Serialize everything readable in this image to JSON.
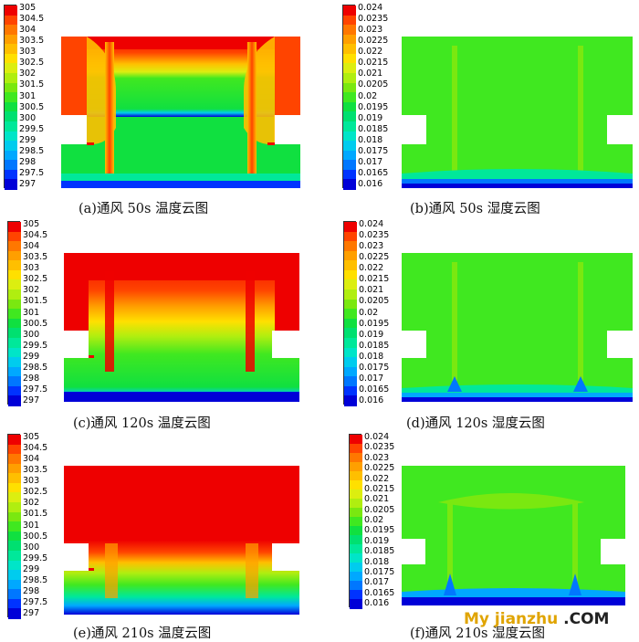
{
  "colors": {
    "scale": [
      "#0000d8",
      "#0033ff",
      "#0077ff",
      "#00a8ff",
      "#00ccee",
      "#00e5c8",
      "#00e89a",
      "#00e070",
      "#10e040",
      "#40e820",
      "#7ae810",
      "#b0ee10",
      "#dcee10",
      "#ffe000",
      "#ffbf00",
      "#ff9f00",
      "#ff7700",
      "#ff4400",
      "#ee0000"
    ],
    "watermark_primary": "#e0a400",
    "watermark_secondary": "#222222"
  },
  "chart_data": [
    {
      "type": "heatmap",
      "field": "temperature",
      "legend_ticks": [
        "305",
        "304.5",
        "304",
        "303.5",
        "303",
        "302.5",
        "302",
        "301.5",
        "301",
        "300.5",
        "300",
        "299.5",
        "299",
        "298.5",
        "298",
        "297.5",
        "297"
      ],
      "range": [
        297,
        305
      ],
      "caption": "(a)通风 50s 温度云图"
    },
    {
      "type": "heatmap",
      "field": "humidity",
      "legend_ticks": [
        "0.024",
        "0.0235",
        "0.023",
        "0.0225",
        "0.022",
        "0.0215",
        "0.021",
        "0.0205",
        "0.02",
        "0.0195",
        "0.019",
        "0.0185",
        "0.018",
        "0.0175",
        "0.017",
        "0.0165",
        "0.016"
      ],
      "range": [
        0.016,
        0.024
      ],
      "caption": "(b)通风 50s 湿度云图"
    },
    {
      "type": "heatmap",
      "field": "temperature",
      "legend_ticks": [
        "305",
        "304.5",
        "304",
        "303.5",
        "303",
        "302.5",
        "302",
        "301.5",
        "301",
        "300.5",
        "300",
        "299.5",
        "299",
        "298.5",
        "298",
        "297.5",
        "297"
      ],
      "range": [
        297,
        305
      ],
      "caption": "(c)通风 120s 温度云图"
    },
    {
      "type": "heatmap",
      "field": "humidity",
      "legend_ticks": [
        "0.024",
        "0.0235",
        "0.023",
        "0.0225",
        "0.022",
        "0.0215",
        "0.021",
        "0.0205",
        "0.02",
        "0.0195",
        "0.019",
        "0.0185",
        "0.018",
        "0.0175",
        "0.017",
        "0.0165",
        "0.016"
      ],
      "range": [
        0.016,
        0.024
      ],
      "caption": "(d)通风 120s 湿度云图"
    },
    {
      "type": "heatmap",
      "field": "temperature",
      "legend_ticks": [
        "305",
        "304.5",
        "304",
        "303.5",
        "303",
        "302.5",
        "302",
        "301.5",
        "301",
        "300.5",
        "300",
        "299.5",
        "299",
        "298.5",
        "298",
        "297.5",
        "297"
      ],
      "range": [
        297,
        305
      ],
      "caption": "(e)通风 210s 温度云图"
    },
    {
      "type": "heatmap",
      "field": "humidity",
      "legend_ticks": [
        "0.024",
        "0.0235",
        "0.023",
        "0.0225",
        "0.022",
        "0.0215",
        "0.021",
        "0.0205",
        "0.02",
        "0.0195",
        "0.019",
        "0.0185",
        "0.018",
        "0.0175",
        "0.017",
        "0.0165",
        "0.016"
      ],
      "range": [
        0.016,
        0.024
      ],
      "caption": "(f)通风 210s 湿度云图"
    }
  ],
  "watermark": {
    "part1": "My jianzhu",
    "part2": " .COM"
  }
}
